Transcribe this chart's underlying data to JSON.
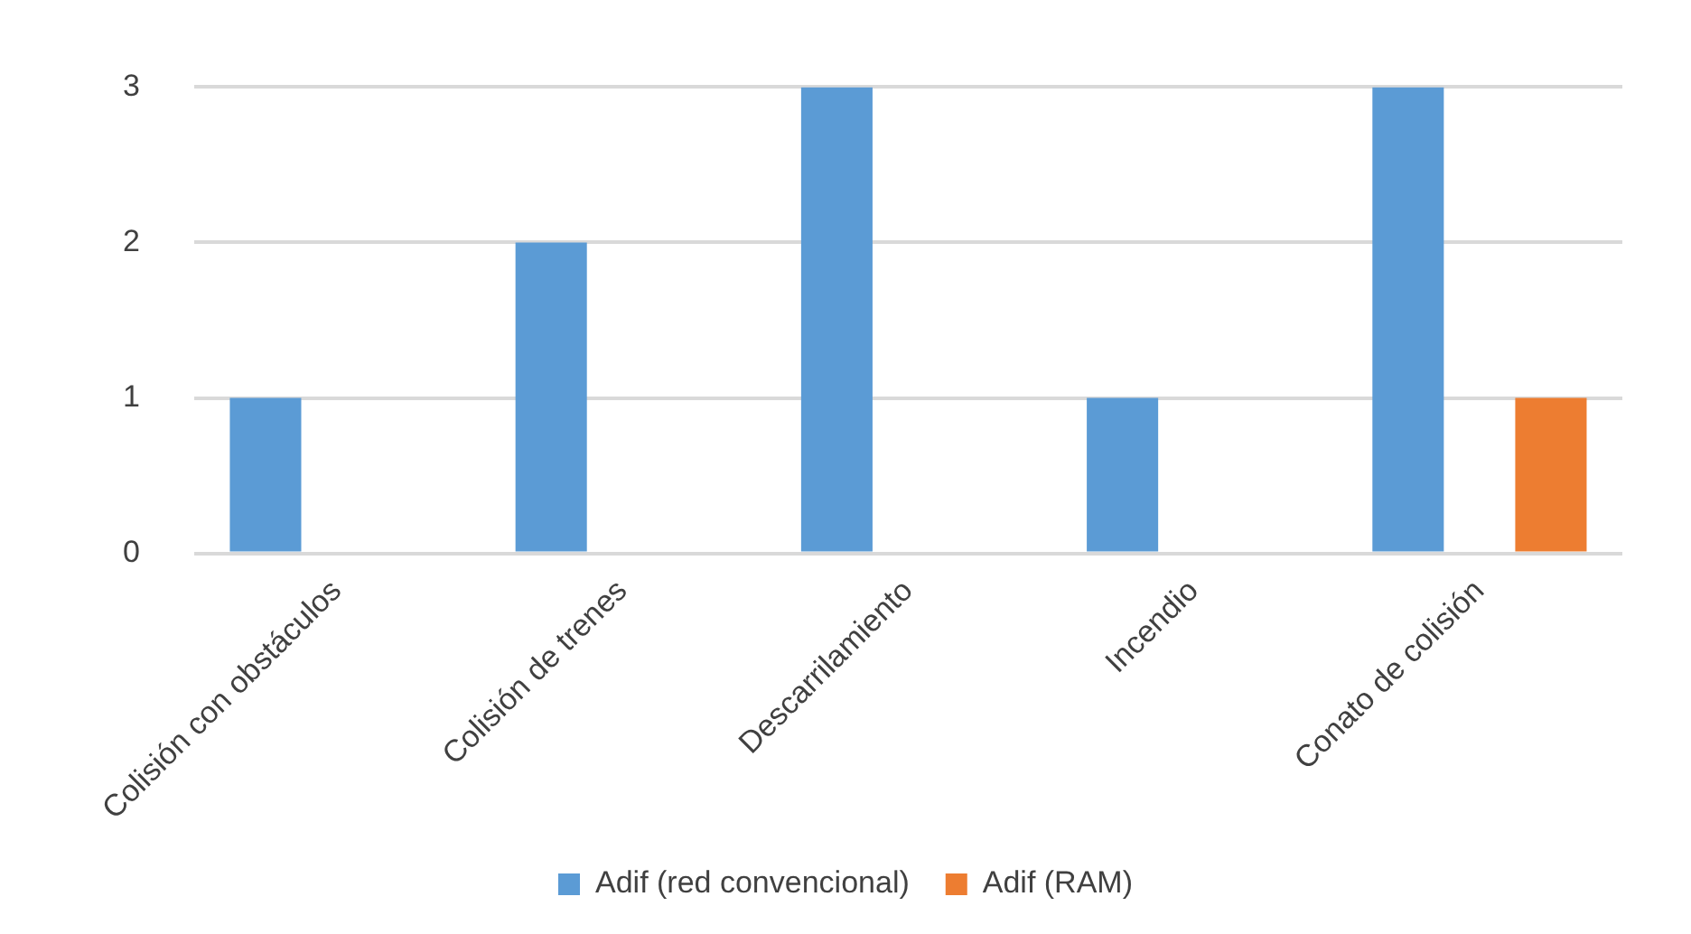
{
  "chart_data": {
    "type": "bar",
    "categories": [
      "Colisión con obstáculos",
      "Colisión de trenes",
      "Descarrilamiento",
      "Incendio",
      "Conato de colisión"
    ],
    "series": [
      {
        "name": "Adif (red convencional)",
        "color": "#5b9bd5",
        "values": [
          1,
          2,
          3,
          1,
          3
        ]
      },
      {
        "name": "Adif (RAM)",
        "color": "#ed7d31",
        "values": [
          0,
          0,
          0,
          0,
          1
        ]
      }
    ],
    "ylim": [
      0,
      3
    ],
    "yticks": [
      0,
      1,
      2,
      3
    ],
    "grid": "y",
    "legend": "bottom"
  }
}
